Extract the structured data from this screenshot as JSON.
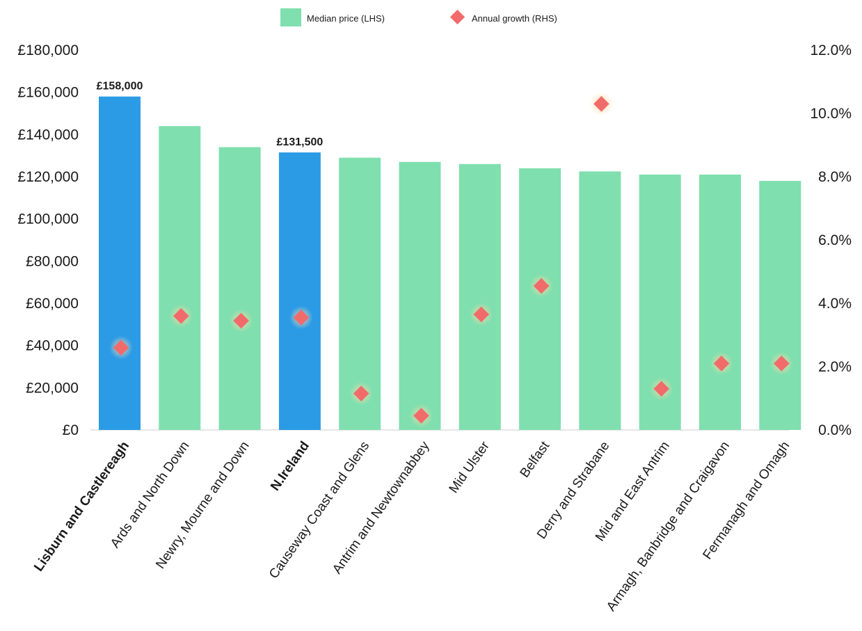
{
  "chart_data": {
    "type": "bar",
    "title": "",
    "xlabel": "",
    "categories": [
      "Lisburn and Castlereagh",
      "Ards and North Down",
      "Newry, Mourne and Down",
      "N.Ireland",
      "Causeway Coast and Glens",
      "Antrim and Newtownabbey",
      "Mid Ulster",
      "Belfast",
      "Derry and Strabane",
      "Mid and East Antrim",
      "Armagh, Banbridge and Craigavon",
      "Fermanagh and Omagh"
    ],
    "highlighted_categories": [
      "Lisburn and Castlereagh",
      "N.Ireland"
    ],
    "series": [
      {
        "name": "Median price (LHS)",
        "type": "bar",
        "axis": "left",
        "values": [
          158000,
          144000,
          134000,
          131500,
          129000,
          127000,
          126000,
          124000,
          122500,
          121000,
          121000,
          118000
        ]
      },
      {
        "name": "Annual growth (RHS)",
        "type": "scatter",
        "axis": "right",
        "values": [
          2.6,
          3.6,
          3.45,
          3.55,
          1.15,
          0.45,
          3.65,
          4.55,
          10.3,
          1.3,
          2.1,
          2.1
        ]
      }
    ],
    "data_labels": [
      {
        "category": "Lisburn and Castlereagh",
        "text": "£158,000"
      },
      {
        "category": "N.Ireland",
        "text": "£131,500"
      }
    ],
    "left_axis": {
      "ylim": [
        0,
        180000
      ],
      "ticks": [
        0,
        20000,
        40000,
        60000,
        80000,
        100000,
        120000,
        140000,
        160000,
        180000
      ],
      "tick_labels": [
        "£0",
        "£20,000",
        "£40,000",
        "£60,000",
        "£80,000",
        "£100,000",
        "£120,000",
        "£140,000",
        "£160,000",
        "£180,000"
      ]
    },
    "right_axis": {
      "ylim": [
        0,
        12
      ],
      "ticks": [
        0,
        2,
        4,
        6,
        8,
        10,
        12
      ],
      "tick_labels": [
        "0.0%",
        "2.0%",
        "4.0%",
        "6.0%",
        "8.0%",
        "10.0%",
        "12.0%"
      ]
    },
    "grid": false,
    "legend": {
      "position": "top-center",
      "entries": [
        "Median price (LHS)",
        "Annual growth (RHS)"
      ]
    },
    "colors": {
      "bar": "#7fdfae",
      "bar_highlight": "#2b9be6",
      "marker": "#f26b6b",
      "marker_glow": "#ffcfa0"
    }
  }
}
